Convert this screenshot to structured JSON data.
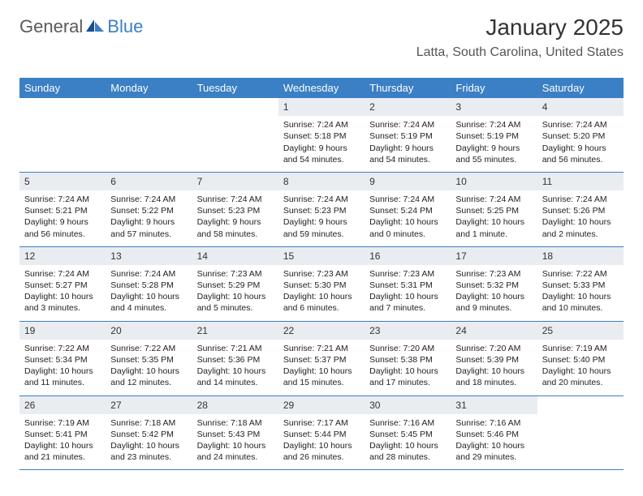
{
  "logo": {
    "text1": "General",
    "text2": "Blue"
  },
  "header": {
    "title": "January 2025",
    "location": "Latta, South Carolina, United States"
  },
  "colors": {
    "header_bg": "#3b7fc4",
    "header_text": "#ffffff",
    "daynum_bg": "#e9edf1",
    "row_border": "#3b7fc4"
  },
  "day_names": [
    "Sunday",
    "Monday",
    "Tuesday",
    "Wednesday",
    "Thursday",
    "Friday",
    "Saturday"
  ],
  "weeks": [
    [
      null,
      null,
      null,
      {
        "n": "1",
        "sr": "7:24 AM",
        "ss": "5:18 PM",
        "dl": "9 hours and 54 minutes."
      },
      {
        "n": "2",
        "sr": "7:24 AM",
        "ss": "5:19 PM",
        "dl": "9 hours and 54 minutes."
      },
      {
        "n": "3",
        "sr": "7:24 AM",
        "ss": "5:19 PM",
        "dl": "9 hours and 55 minutes."
      },
      {
        "n": "4",
        "sr": "7:24 AM",
        "ss": "5:20 PM",
        "dl": "9 hours and 56 minutes."
      }
    ],
    [
      {
        "n": "5",
        "sr": "7:24 AM",
        "ss": "5:21 PM",
        "dl": "9 hours and 56 minutes."
      },
      {
        "n": "6",
        "sr": "7:24 AM",
        "ss": "5:22 PM",
        "dl": "9 hours and 57 minutes."
      },
      {
        "n": "7",
        "sr": "7:24 AM",
        "ss": "5:23 PM",
        "dl": "9 hours and 58 minutes."
      },
      {
        "n": "8",
        "sr": "7:24 AM",
        "ss": "5:23 PM",
        "dl": "9 hours and 59 minutes."
      },
      {
        "n": "9",
        "sr": "7:24 AM",
        "ss": "5:24 PM",
        "dl": "10 hours and 0 minutes."
      },
      {
        "n": "10",
        "sr": "7:24 AM",
        "ss": "5:25 PM",
        "dl": "10 hours and 1 minute."
      },
      {
        "n": "11",
        "sr": "7:24 AM",
        "ss": "5:26 PM",
        "dl": "10 hours and 2 minutes."
      }
    ],
    [
      {
        "n": "12",
        "sr": "7:24 AM",
        "ss": "5:27 PM",
        "dl": "10 hours and 3 minutes."
      },
      {
        "n": "13",
        "sr": "7:24 AM",
        "ss": "5:28 PM",
        "dl": "10 hours and 4 minutes."
      },
      {
        "n": "14",
        "sr": "7:23 AM",
        "ss": "5:29 PM",
        "dl": "10 hours and 5 minutes."
      },
      {
        "n": "15",
        "sr": "7:23 AM",
        "ss": "5:30 PM",
        "dl": "10 hours and 6 minutes."
      },
      {
        "n": "16",
        "sr": "7:23 AM",
        "ss": "5:31 PM",
        "dl": "10 hours and 7 minutes."
      },
      {
        "n": "17",
        "sr": "7:23 AM",
        "ss": "5:32 PM",
        "dl": "10 hours and 9 minutes."
      },
      {
        "n": "18",
        "sr": "7:22 AM",
        "ss": "5:33 PM",
        "dl": "10 hours and 10 minutes."
      }
    ],
    [
      {
        "n": "19",
        "sr": "7:22 AM",
        "ss": "5:34 PM",
        "dl": "10 hours and 11 minutes."
      },
      {
        "n": "20",
        "sr": "7:22 AM",
        "ss": "5:35 PM",
        "dl": "10 hours and 12 minutes."
      },
      {
        "n": "21",
        "sr": "7:21 AM",
        "ss": "5:36 PM",
        "dl": "10 hours and 14 minutes."
      },
      {
        "n": "22",
        "sr": "7:21 AM",
        "ss": "5:37 PM",
        "dl": "10 hours and 15 minutes."
      },
      {
        "n": "23",
        "sr": "7:20 AM",
        "ss": "5:38 PM",
        "dl": "10 hours and 17 minutes."
      },
      {
        "n": "24",
        "sr": "7:20 AM",
        "ss": "5:39 PM",
        "dl": "10 hours and 18 minutes."
      },
      {
        "n": "25",
        "sr": "7:19 AM",
        "ss": "5:40 PM",
        "dl": "10 hours and 20 minutes."
      }
    ],
    [
      {
        "n": "26",
        "sr": "7:19 AM",
        "ss": "5:41 PM",
        "dl": "10 hours and 21 minutes."
      },
      {
        "n": "27",
        "sr": "7:18 AM",
        "ss": "5:42 PM",
        "dl": "10 hours and 23 minutes."
      },
      {
        "n": "28",
        "sr": "7:18 AM",
        "ss": "5:43 PM",
        "dl": "10 hours and 24 minutes."
      },
      {
        "n": "29",
        "sr": "7:17 AM",
        "ss": "5:44 PM",
        "dl": "10 hours and 26 minutes."
      },
      {
        "n": "30",
        "sr": "7:16 AM",
        "ss": "5:45 PM",
        "dl": "10 hours and 28 minutes."
      },
      {
        "n": "31",
        "sr": "7:16 AM",
        "ss": "5:46 PM",
        "dl": "10 hours and 29 minutes."
      },
      null
    ]
  ],
  "labels": {
    "sunrise": "Sunrise: ",
    "sunset": "Sunset: ",
    "daylight": "Daylight: "
  }
}
